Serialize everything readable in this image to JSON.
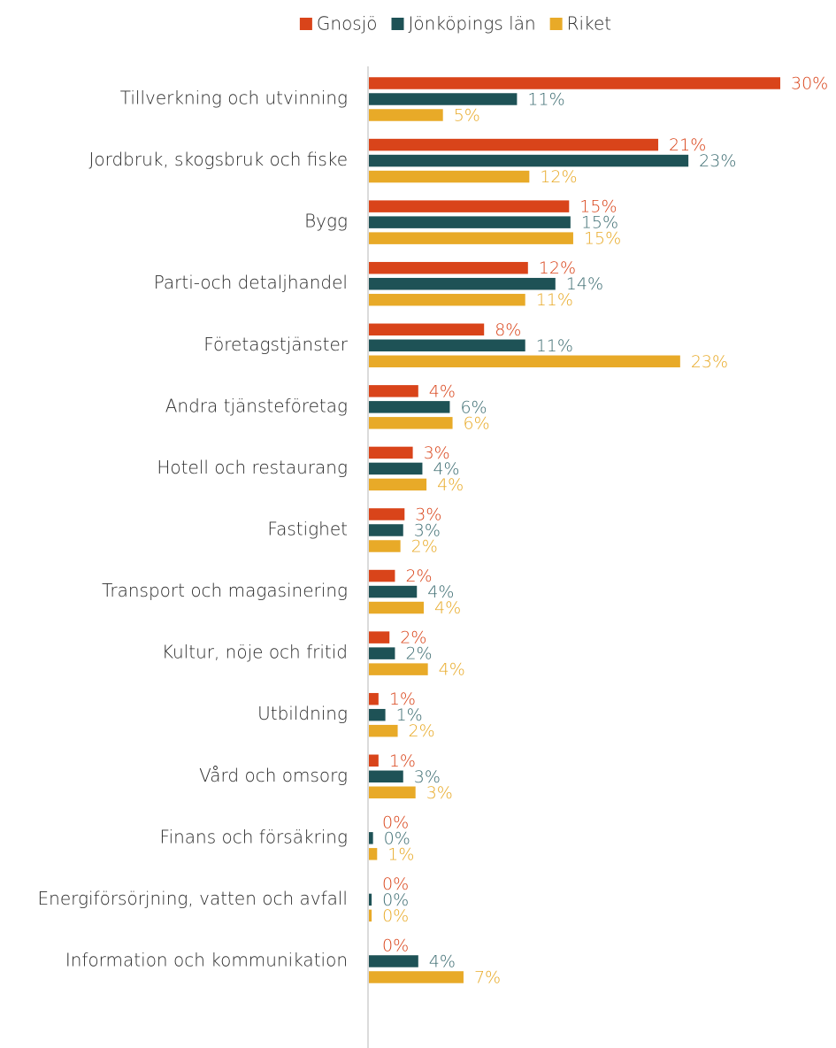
{
  "chart_data": {
    "type": "hbar",
    "categories": [
      "Tillverkning och utvinning",
      "Jordbruk, skogsbruk och fiske",
      "Bygg",
      "Parti-och detaljhandel",
      "Företagstjänster",
      "Andra tjänsteföretag",
      "Hotell och restaurang",
      "Fastighet",
      "Transport och magasinering",
      "Kultur, nöje och fritid",
      "Utbildning",
      "Vård och omsorg",
      "Finans och försäkring",
      "Energiförsörjning, vatten och avfall",
      "Information och kommunikation"
    ],
    "series": [
      {
        "name": "Gnosjö",
        "color": "#d9441a",
        "label_color": "#d9441a",
        "values": [
          30.0,
          21.1,
          14.6,
          11.6,
          8.4,
          3.6,
          3.2,
          2.6,
          1.9,
          1.5,
          0.7,
          0.7,
          0,
          0,
          0
        ],
        "value_labels": [
          "30%",
          "21%",
          "15%",
          "12%",
          "8%",
          "4%",
          "3%",
          "3%",
          "2%",
          "2%",
          "1%",
          "1%",
          "0%",
          "0%",
          "0%"
        ]
      },
      {
        "name": "Jönköpings län",
        "color": "#1e5256",
        "label_color": "#3f6e73",
        "values": [
          10.8,
          23.3,
          14.7,
          13.6,
          11.4,
          5.9,
          3.9,
          2.5,
          3.5,
          1.9,
          1.2,
          2.5,
          0.3,
          0.2,
          3.6
        ],
        "value_labels": [
          "11%",
          "23%",
          "15%",
          "14%",
          "11%",
          "6%",
          "4%",
          "3%",
          "4%",
          "2%",
          "1%",
          "3%",
          "0%",
          "0%",
          "4%"
        ]
      },
      {
        "name": "Riket",
        "color": "#e8aa28",
        "label_color": "#e8aa28",
        "values": [
          5.4,
          11.7,
          14.9,
          11.4,
          22.7,
          6.1,
          4.2,
          2.3,
          4.0,
          4.3,
          2.1,
          3.4,
          0.6,
          0.2,
          6.9
        ],
        "value_labels": [
          "5%",
          "12%",
          "15%",
          "11%",
          "23%",
          "6%",
          "4%",
          "2%",
          "4%",
          "4%",
          "2%",
          "3%",
          "1%",
          "0%",
          "7%"
        ]
      }
    ],
    "xlim": [
      0,
      30
    ],
    "legend": "top"
  }
}
